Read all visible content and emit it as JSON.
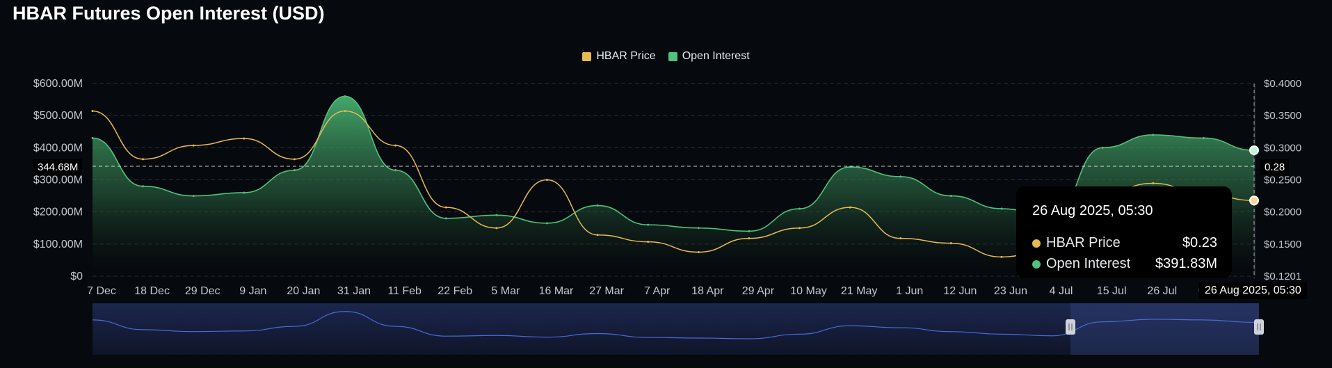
{
  "colors": {
    "price": "#e7b955",
    "oi": "#4fc27c",
    "navigator": "#4a6ad6",
    "background": "#06090d"
  },
  "crosshair": {
    "y_value_label": "344.68M",
    "right_value_label": "0.28",
    "x_label": "26 Aug 2025, 05:30"
  },
  "tooltip": {
    "time": "26 Aug 2025, 05:30",
    "rows": [
      {
        "label": "HBAR Price",
        "value": "$0.23"
      },
      {
        "label": "Open Interest",
        "value": "$391.83M"
      }
    ]
  },
  "chart_data": {
    "type": "area",
    "title": "HBAR Futures Open Interest (USD)",
    "legend": [
      "HBAR Price",
      "Open Interest"
    ],
    "legend_position": "top-center",
    "categories": [
      "7 Dec",
      "18 Dec",
      "29 Dec",
      "9 Jan",
      "20 Jan",
      "31 Jan",
      "11 Feb",
      "22 Feb",
      "5 Mar",
      "16 Mar",
      "27 Mar",
      "7 Apr",
      "18 Apr",
      "29 Apr",
      "10 May",
      "21 May",
      "1 Jun",
      "12 Jun",
      "23 Jun",
      "4 Jul",
      "15 Jul",
      "26 Jul",
      "6 Aug",
      "26 Aug 2025, 05:30"
    ],
    "y_left": {
      "ticks": [
        "$0",
        "$100.00M",
        "$200.00M",
        "$300.00M",
        "$400.00M",
        "$500.00M",
        "$600.00M"
      ],
      "range": [
        0,
        600
      ]
    },
    "y_right": {
      "ticks": [
        "$0.1201",
        "$0.1500",
        "$0.2000",
        "$0.2500",
        "$0.3000",
        "$0.3500",
        "$0.4000"
      ],
      "range": [
        0.1201,
        0.4
      ]
    },
    "grid": true,
    "series": [
      {
        "name": "Open Interest",
        "values": [
          430,
          280,
          250,
          260,
          330,
          560,
          330,
          180,
          190,
          165,
          220,
          160,
          150,
          140,
          210,
          340,
          310,
          250,
          210,
          185,
          400,
          440,
          430,
          391.83
        ]
      },
      {
        "name": "HBAR Price",
        "values": [
          0.36,
          0.29,
          0.31,
          0.32,
          0.29,
          0.36,
          0.31,
          0.22,
          0.19,
          0.26,
          0.18,
          0.17,
          0.155,
          0.175,
          0.19,
          0.22,
          0.175,
          0.168,
          0.148,
          0.16,
          0.24,
          0.255,
          0.24,
          0.23
        ]
      }
    ]
  }
}
